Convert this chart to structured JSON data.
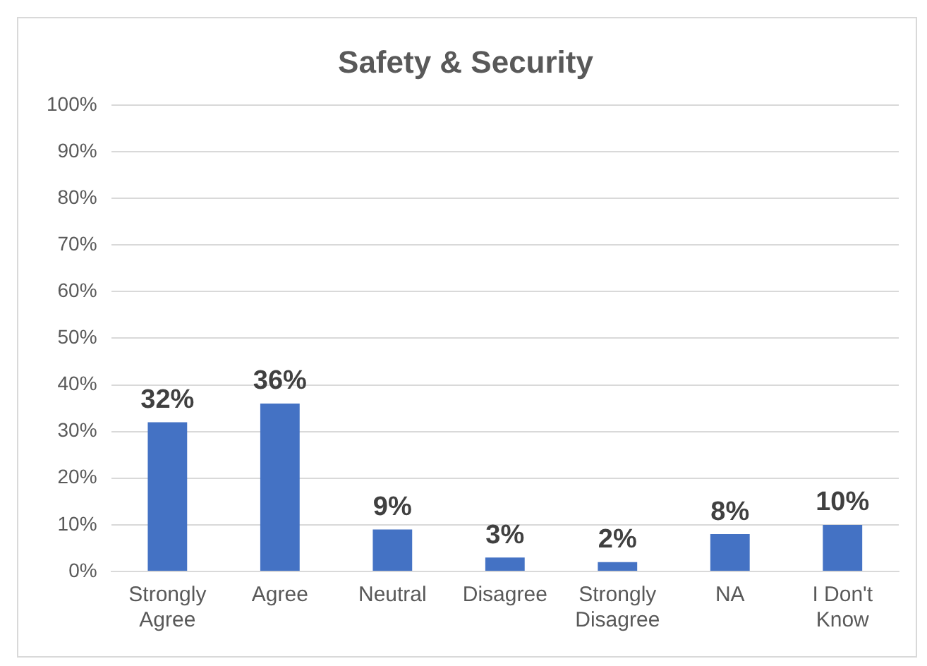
{
  "chart_data": {
    "type": "bar",
    "title": "Safety & Security",
    "categories": [
      "Strongly Agree",
      "Agree",
      "Neutral",
      "Disagree",
      "Strongly Disagree",
      "NA",
      "I Don't Know"
    ],
    "values": [
      32,
      36,
      9,
      3,
      2,
      8,
      10
    ],
    "value_labels": [
      "32%",
      "36%",
      "9%",
      "3%",
      "2%",
      "8%",
      "10%"
    ],
    "color": "#4472c4",
    "ylim": [
      0,
      100
    ],
    "yticks": [
      {
        "value": 0,
        "label": "0%"
      },
      {
        "value": 10,
        "label": "10%"
      },
      {
        "value": 20,
        "label": "20%"
      },
      {
        "value": 30,
        "label": "30%"
      },
      {
        "value": 40,
        "label": "40%"
      },
      {
        "value": 50,
        "label": "50%"
      },
      {
        "value": 60,
        "label": "60%"
      },
      {
        "value": 70,
        "label": "70%"
      },
      {
        "value": 80,
        "label": "80%"
      },
      {
        "value": 90,
        "label": "90%"
      },
      {
        "value": 100,
        "label": "100%"
      }
    ],
    "grid": "y",
    "legend": false
  }
}
